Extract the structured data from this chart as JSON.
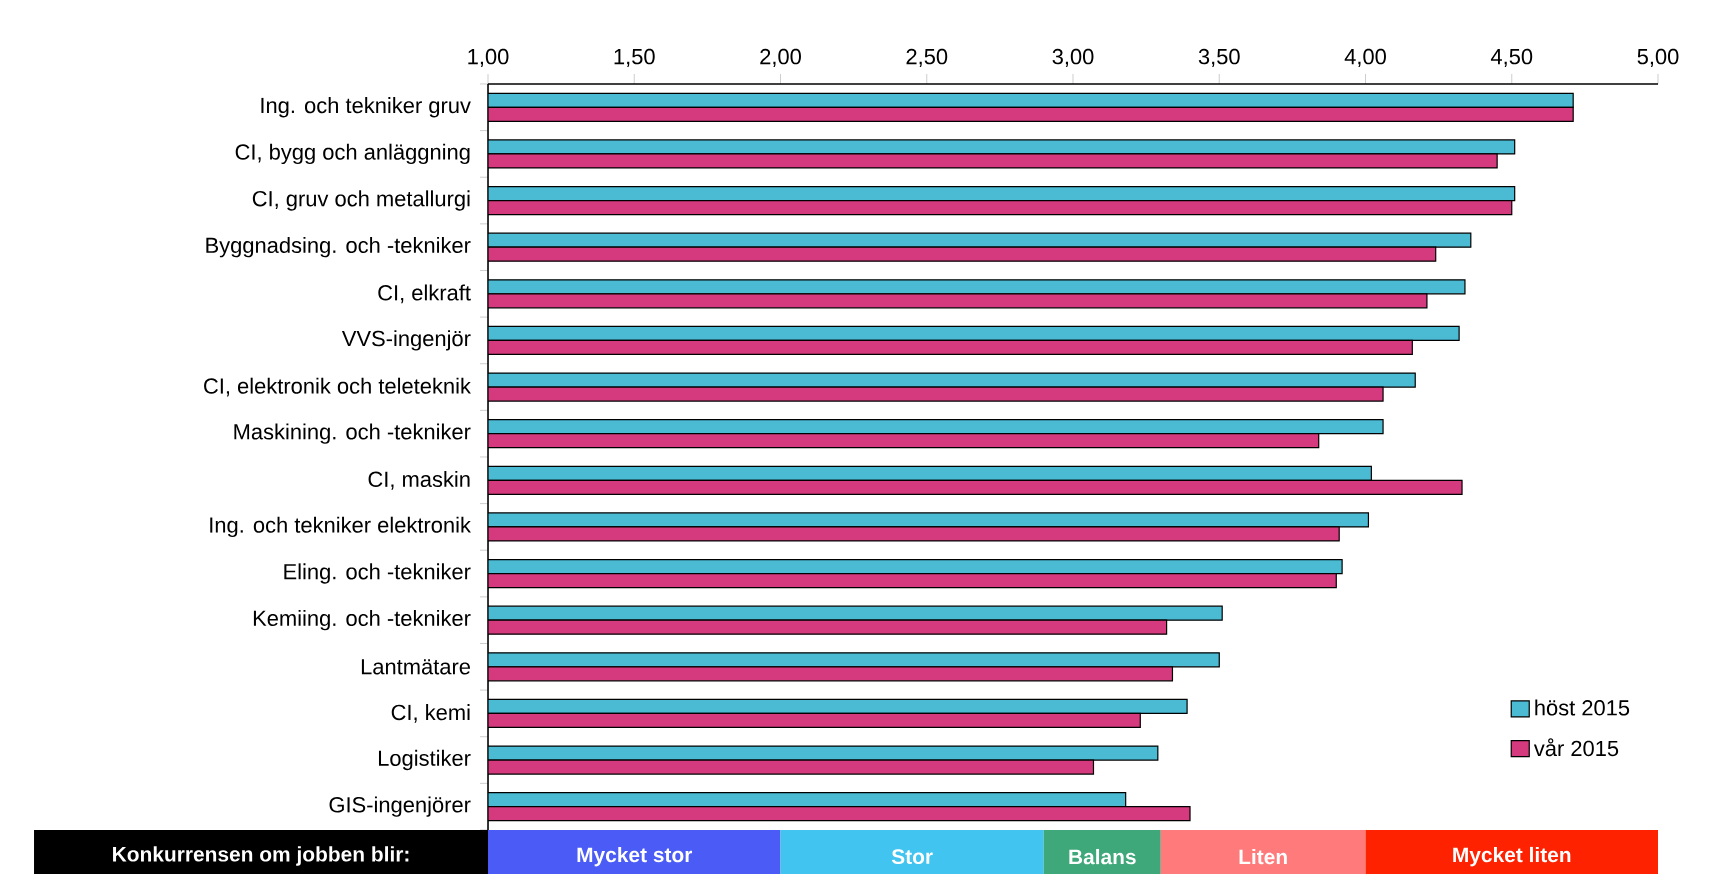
{
  "chart_data": {
    "type": "bar",
    "orientation": "horizontal",
    "categories": [
      "Ing. och tekniker gruv",
      "CI, bygg och anläggning",
      "CI, gruv och metallurgi",
      "Byggnadsing. och -tekniker",
      "CI, elkraft",
      "VVS-ingenjör",
      "CI, elektronik och teleteknik",
      "Maskining. och -tekniker",
      "CI, maskin",
      "Ing. och tekniker elektronik",
      "Eling. och -tekniker",
      "Kemiing. och -tekniker",
      "Lantmätare",
      "CI, kemi",
      "Logistiker",
      "GIS-ingenjörer"
    ],
    "series": [
      {
        "name": "höst 2015",
        "color": "#4bbbd4",
        "values": [
          4.71,
          4.51,
          4.51,
          4.36,
          4.34,
          4.32,
          4.17,
          4.06,
          4.02,
          4.01,
          3.92,
          3.51,
          3.5,
          3.39,
          3.29,
          3.18
        ]
      },
      {
        "name": "vår 2015",
        "color": "#d63a7e",
        "values": [
          4.71,
          4.45,
          4.5,
          4.24,
          4.21,
          4.16,
          4.06,
          3.84,
          4.33,
          3.91,
          3.9,
          3.32,
          3.34,
          3.23,
          3.07,
          3.4
        ]
      }
    ],
    "xlim": [
      1,
      5
    ],
    "xticks": [
      {
        "value": 1,
        "label": "1,00"
      },
      {
        "value": 1.5,
        "label": "1,50"
      },
      {
        "value": 2,
        "label": "2,00"
      },
      {
        "value": 2.5,
        "label": "2,50"
      },
      {
        "value": 3,
        "label": "3,00"
      },
      {
        "value": 3.5,
        "label": "3,50"
      },
      {
        "value": 4,
        "label": "4,00"
      },
      {
        "value": 4.5,
        "label": "4,50"
      },
      {
        "value": 5,
        "label": "5,00"
      }
    ],
    "bands": [
      {
        "axis": "x",
        "from": 1,
        "to": 2,
        "label": "Mycket stor",
        "color": "#4a5cf5"
      },
      {
        "axis": "x",
        "from": 2,
        "to": 2.9,
        "label": "Stor",
        "color": "#42c4f0"
      },
      {
        "axis": "x",
        "from": 2.9,
        "to": 3.3,
        "label": "Balans",
        "color": "#3fa87a"
      },
      {
        "axis": "x",
        "from": 3.3,
        "to": 4,
        "label": "Liten",
        "color": "#ff7b7b"
      },
      {
        "axis": "x",
        "from": 4,
        "to": 5,
        "label": "Mycket liten",
        "color": "#ff2200"
      }
    ],
    "annotations": [
      "Konkurrensen om jobben blir:"
    ],
    "legend": "bottom right"
  }
}
